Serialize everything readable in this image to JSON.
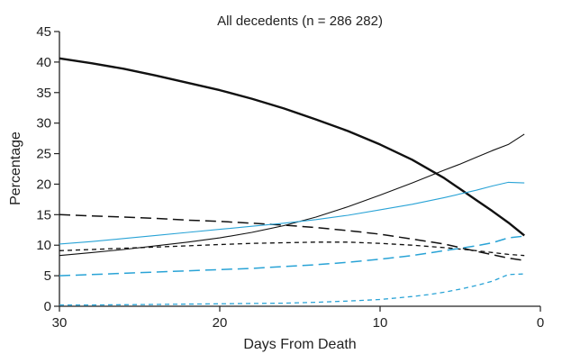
{
  "chart_data": {
    "type": "line",
    "title": "All decedents (n = 286 282)",
    "xlabel": "Days From Death",
    "ylabel": "Percentage",
    "xlim": [
      30,
      0
    ],
    "ylim": [
      0,
      45
    ],
    "xticks": [
      "30",
      "20",
      "10",
      "0"
    ],
    "xtick_values": [
      30,
      20,
      10,
      0
    ],
    "yticks": [
      "0",
      "5",
      "10",
      "15",
      "20",
      "25",
      "30",
      "35",
      "40",
      "45"
    ],
    "ytick_values": [
      0,
      5,
      10,
      15,
      20,
      25,
      30,
      35,
      40,
      45
    ],
    "grid": false,
    "legend": "none",
    "series": [
      {
        "name": "Series 1 (thick black solid)",
        "color": "#111111",
        "style": "solid-thick",
        "x": [
          30,
          28,
          26,
          24,
          22,
          20,
          18,
          16,
          14,
          12,
          10,
          8,
          6,
          5,
          4,
          3,
          2,
          1
        ],
        "y": [
          40.6,
          39.8,
          38.9,
          37.8,
          36.6,
          35.4,
          34.0,
          32.4,
          30.6,
          28.7,
          26.5,
          24.0,
          21.0,
          19.2,
          17.4,
          15.6,
          13.7,
          11.6
        ]
      },
      {
        "name": "Series 2 (thin black solid)",
        "color": "#111111",
        "style": "solid-thin",
        "x": [
          30,
          28,
          26,
          24,
          22,
          20,
          18,
          16,
          14,
          12,
          10,
          8,
          6,
          5,
          4,
          3,
          2,
          1
        ],
        "y": [
          8.3,
          8.8,
          9.3,
          9.9,
          10.5,
          11.2,
          12.1,
          13.2,
          14.6,
          16.3,
          18.2,
          20.2,
          22.3,
          23.3,
          24.4,
          25.5,
          26.5,
          28.2
        ]
      },
      {
        "name": "Series 3 (black long dash)",
        "color": "#111111",
        "style": "long-dash",
        "x": [
          30,
          28,
          26,
          24,
          22,
          20,
          18,
          16,
          14,
          12,
          10,
          8,
          6,
          4,
          2,
          1
        ],
        "y": [
          15.0,
          14.8,
          14.6,
          14.4,
          14.1,
          13.9,
          13.6,
          13.3,
          12.9,
          12.4,
          11.8,
          11.0,
          10.2,
          9.0,
          7.9,
          7.5
        ]
      },
      {
        "name": "Series 4 (black short dash)",
        "color": "#111111",
        "style": "short-dash",
        "x": [
          30,
          28,
          26,
          24,
          22,
          20,
          18,
          16,
          14,
          12,
          10,
          8,
          6,
          4,
          2,
          1
        ],
        "y": [
          9.1,
          9.3,
          9.5,
          9.7,
          9.9,
          10.1,
          10.3,
          10.4,
          10.5,
          10.5,
          10.3,
          10.0,
          9.6,
          9.1,
          8.5,
          8.3
        ]
      },
      {
        "name": "Series 5 (blue solid)",
        "color": "#29a3d6",
        "style": "solid-thin",
        "x": [
          30,
          28,
          26,
          24,
          22,
          20,
          18,
          16,
          14,
          12,
          10,
          8,
          6,
          4,
          3,
          2,
          1
        ],
        "y": [
          10.2,
          10.6,
          11.1,
          11.6,
          12.1,
          12.6,
          13.1,
          13.6,
          14.2,
          14.9,
          15.8,
          16.7,
          17.8,
          19.0,
          19.7,
          20.3,
          20.2
        ]
      },
      {
        "name": "Series 6 (blue long dash)",
        "color": "#29a3d6",
        "style": "long-dash",
        "x": [
          30,
          28,
          26,
          24,
          22,
          20,
          18,
          16,
          14,
          12,
          10,
          8,
          6,
          4,
          3,
          2,
          1
        ],
        "y": [
          5.0,
          5.2,
          5.4,
          5.6,
          5.8,
          6.0,
          6.2,
          6.5,
          6.8,
          7.2,
          7.7,
          8.3,
          9.1,
          9.9,
          10.4,
          11.2,
          11.5
        ]
      },
      {
        "name": "Series 7 (blue short dash)",
        "color": "#29a3d6",
        "style": "short-dash",
        "x": [
          30,
          28,
          26,
          24,
          22,
          20,
          18,
          16,
          14,
          12,
          10,
          8,
          7,
          6,
          5,
          4,
          3,
          2,
          1
        ],
        "y": [
          0.2,
          0.2,
          0.25,
          0.3,
          0.35,
          0.4,
          0.45,
          0.5,
          0.65,
          0.85,
          1.1,
          1.6,
          1.9,
          2.3,
          2.8,
          3.4,
          4.1,
          5.2,
          5.3
        ]
      }
    ]
  }
}
